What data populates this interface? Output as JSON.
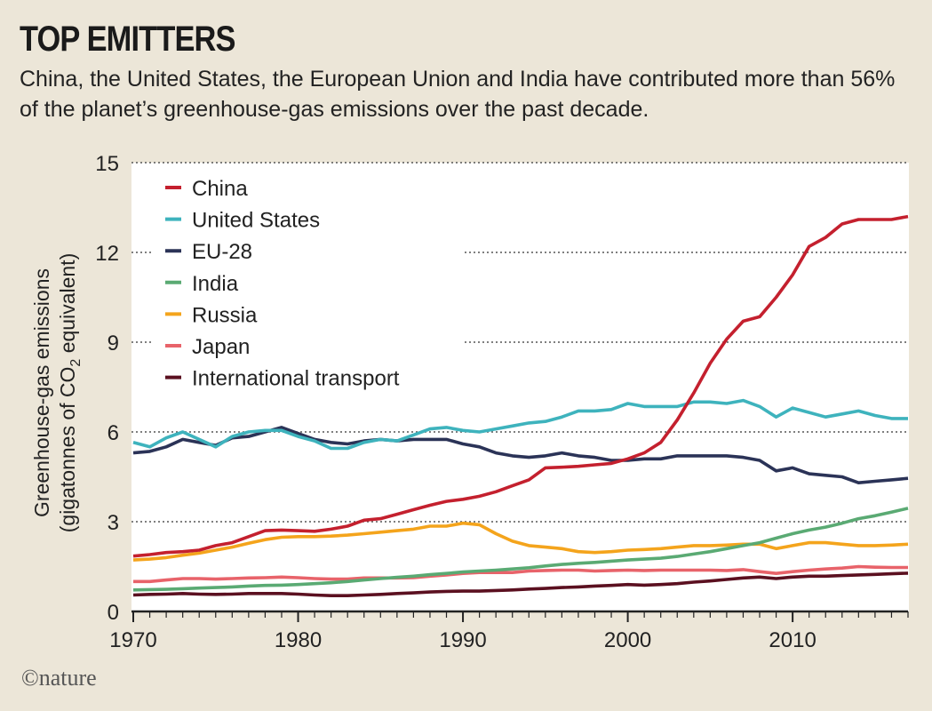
{
  "header": {
    "title": "TOP EMITTERS",
    "subtitle": "China, the United States, the European Union and India have contributed more than 56% of the planet’s greenhouse-gas emissions over the past decade."
  },
  "footer": {
    "credit": "©nature"
  },
  "chart_data": {
    "type": "line",
    "ylabel_line1": "Greenhouse-gas emissions",
    "ylabel_line2_pre": "(gigatonnes of CO",
    "ylabel_line2_sub": "2",
    "ylabel_line2_post": " equivalent)",
    "xlim": [
      1970,
      2017
    ],
    "ylim": [
      0,
      15
    ],
    "x_ticks": [
      1970,
      1980,
      1990,
      2000,
      2010
    ],
    "y_ticks": [
      0,
      3,
      6,
      9,
      12,
      15
    ],
    "grid": "horizontal dotted",
    "legend_position": "top-left",
    "x": [
      1970,
      1971,
      1972,
      1973,
      1974,
      1975,
      1976,
      1977,
      1978,
      1979,
      1980,
      1981,
      1982,
      1983,
      1984,
      1985,
      1986,
      1987,
      1988,
      1989,
      1990,
      1991,
      1992,
      1993,
      1994,
      1995,
      1996,
      1997,
      1998,
      1999,
      2000,
      2001,
      2002,
      2003,
      2004,
      2005,
      2006,
      2007,
      2008,
      2009,
      2010,
      2011,
      2012,
      2013,
      2014,
      2015,
      2016,
      2017
    ],
    "series": [
      {
        "name": "China",
        "color": "#c4202e",
        "values": [
          1.85,
          1.9,
          1.97,
          2.0,
          2.05,
          2.2,
          2.3,
          2.5,
          2.7,
          2.72,
          2.7,
          2.68,
          2.75,
          2.85,
          3.05,
          3.1,
          3.25,
          3.4,
          3.55,
          3.68,
          3.75,
          3.85,
          4.0,
          4.2,
          4.4,
          4.8,
          4.82,
          4.85,
          4.9,
          4.95,
          5.1,
          5.3,
          5.65,
          6.4,
          7.3,
          8.3,
          9.1,
          9.7,
          9.85,
          10.5,
          11.25,
          12.2,
          12.5,
          12.95,
          13.1,
          13.1,
          13.1,
          13.2
        ]
      },
      {
        "name": "United States",
        "color": "#3eb3bd",
        "values": [
          5.65,
          5.5,
          5.8,
          6.0,
          5.75,
          5.5,
          5.85,
          6.0,
          6.05,
          6.05,
          5.85,
          5.7,
          5.45,
          5.45,
          5.65,
          5.75,
          5.7,
          5.9,
          6.1,
          6.15,
          6.05,
          6.0,
          6.1,
          6.2,
          6.3,
          6.35,
          6.5,
          6.7,
          6.7,
          6.75,
          6.95,
          6.85,
          6.85,
          6.85,
          7.0,
          7.0,
          6.95,
          7.05,
          6.85,
          6.5,
          6.8,
          6.65,
          6.5,
          6.6,
          6.7,
          6.55,
          6.45,
          6.45
        ]
      },
      {
        "name": "EU-28",
        "color": "#2b3357",
        "values": [
          5.3,
          5.35,
          5.5,
          5.75,
          5.65,
          5.55,
          5.8,
          5.85,
          6.0,
          6.15,
          5.95,
          5.75,
          5.65,
          5.6,
          5.7,
          5.75,
          5.7,
          5.75,
          5.75,
          5.75,
          5.6,
          5.5,
          5.3,
          5.2,
          5.15,
          5.2,
          5.3,
          5.2,
          5.15,
          5.05,
          5.05,
          5.1,
          5.1,
          5.2,
          5.2,
          5.2,
          5.2,
          5.15,
          5.05,
          4.7,
          4.8,
          4.6,
          4.55,
          4.5,
          4.3,
          4.35,
          4.4,
          4.45
        ]
      },
      {
        "name": "India",
        "color": "#5aaa73",
        "values": [
          0.72,
          0.73,
          0.74,
          0.76,
          0.78,
          0.8,
          0.82,
          0.85,
          0.87,
          0.88,
          0.9,
          0.93,
          0.96,
          1.0,
          1.05,
          1.1,
          1.14,
          1.18,
          1.23,
          1.27,
          1.32,
          1.35,
          1.38,
          1.42,
          1.46,
          1.52,
          1.57,
          1.61,
          1.64,
          1.68,
          1.72,
          1.75,
          1.78,
          1.84,
          1.92,
          2.0,
          2.1,
          2.2,
          2.3,
          2.45,
          2.6,
          2.72,
          2.82,
          2.95,
          3.1,
          3.2,
          3.32,
          3.45
        ]
      },
      {
        "name": "Russia",
        "color": "#f4a41c",
        "values": [
          1.72,
          1.75,
          1.8,
          1.88,
          1.95,
          2.05,
          2.15,
          2.28,
          2.4,
          2.48,
          2.5,
          2.5,
          2.52,
          2.55,
          2.6,
          2.65,
          2.7,
          2.75,
          2.85,
          2.85,
          2.95,
          2.9,
          2.6,
          2.35,
          2.2,
          2.15,
          2.1,
          2.0,
          1.97,
          2.0,
          2.05,
          2.07,
          2.1,
          2.15,
          2.2,
          2.2,
          2.22,
          2.25,
          2.25,
          2.1,
          2.2,
          2.3,
          2.3,
          2.25,
          2.2,
          2.2,
          2.22,
          2.25
        ]
      },
      {
        "name": "Japan",
        "color": "#e8636a",
        "values": [
          1.0,
          1.0,
          1.05,
          1.1,
          1.1,
          1.08,
          1.1,
          1.12,
          1.13,
          1.15,
          1.13,
          1.1,
          1.08,
          1.08,
          1.12,
          1.12,
          1.12,
          1.13,
          1.18,
          1.22,
          1.27,
          1.3,
          1.3,
          1.3,
          1.35,
          1.37,
          1.38,
          1.38,
          1.35,
          1.37,
          1.38,
          1.37,
          1.38,
          1.38,
          1.38,
          1.38,
          1.37,
          1.4,
          1.33,
          1.27,
          1.33,
          1.38,
          1.42,
          1.45,
          1.5,
          1.48,
          1.47,
          1.47
        ]
      },
      {
        "name": "International transport",
        "color": "#5b1020",
        "values": [
          0.55,
          0.57,
          0.58,
          0.6,
          0.58,
          0.57,
          0.58,
          0.6,
          0.6,
          0.6,
          0.58,
          0.55,
          0.53,
          0.53,
          0.55,
          0.57,
          0.6,
          0.62,
          0.65,
          0.67,
          0.68,
          0.68,
          0.7,
          0.72,
          0.75,
          0.77,
          0.8,
          0.82,
          0.85,
          0.87,
          0.9,
          0.88,
          0.9,
          0.93,
          0.98,
          1.02,
          1.07,
          1.12,
          1.15,
          1.1,
          1.15,
          1.18,
          1.18,
          1.2,
          1.22,
          1.24,
          1.26,
          1.28
        ]
      }
    ]
  }
}
